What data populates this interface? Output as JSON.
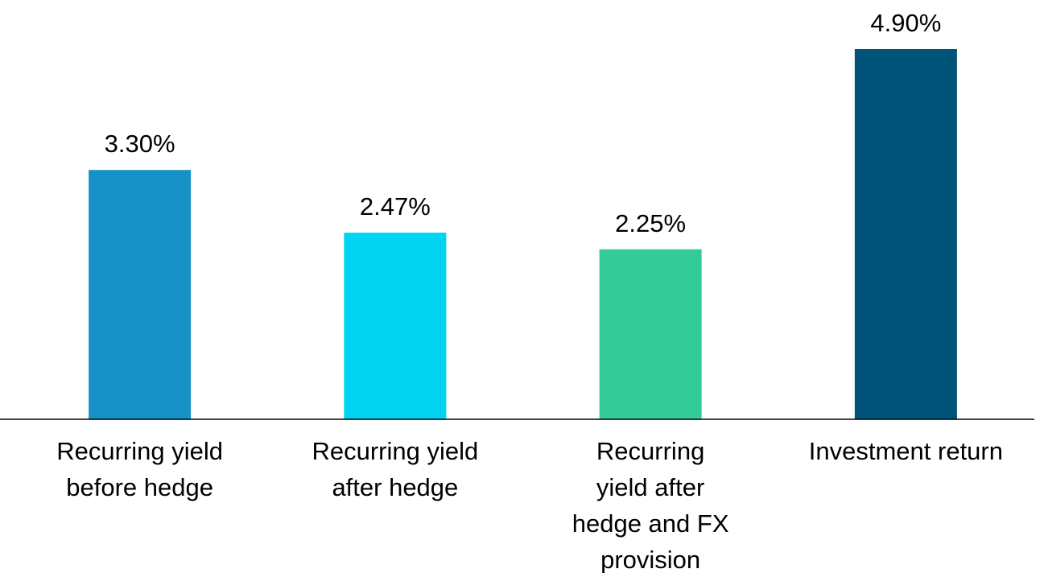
{
  "chart_data": {
    "type": "bar",
    "categories": [
      "Recurring yield before hedge",
      "Recurring yield after hedge",
      "Recurring yield after hedge and FX provision",
      "Investment return"
    ],
    "values": [
      3.3,
      2.47,
      2.25,
      4.9
    ],
    "value_labels": [
      "3.30%",
      "2.47%",
      "2.25%",
      "4.90%"
    ],
    "colors": [
      "#1591c6",
      "#00d4f0",
      "#33cc99",
      "#005378"
    ]
  }
}
